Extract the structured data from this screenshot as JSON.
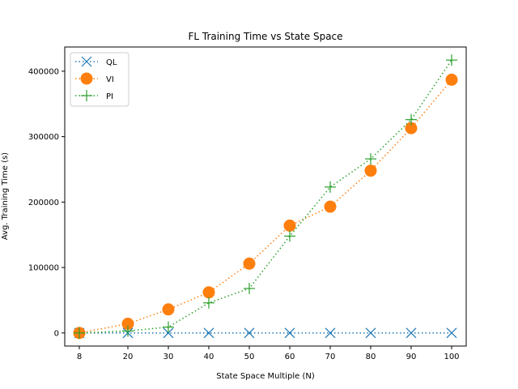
{
  "chart_data": {
    "type": "line",
    "title": "FL Training Time vs State Space",
    "xlabel": "State Space Multiple (N)",
    "ylabel": "Avg. Training Time (s)",
    "x": [
      8,
      20,
      30,
      40,
      50,
      60,
      70,
      80,
      90,
      100
    ],
    "x_ticks": [
      "8",
      "20",
      "30",
      "40",
      "50",
      "60",
      "70",
      "80",
      "90",
      "100"
    ],
    "y_ticks": [
      "0",
      "100000",
      "200000",
      "300000",
      "400000"
    ],
    "xlim": [
      4.4,
      103.6
    ],
    "ylim": [
      -20000,
      437000
    ],
    "legend_position": "top-left",
    "grid": false,
    "series": [
      {
        "name": "QL",
        "color": "#1f77b4",
        "marker": "x",
        "values": [
          0,
          0,
          0,
          0,
          0,
          0,
          0,
          0,
          0,
          0
        ]
      },
      {
        "name": "VI",
        "color": "#ff7f0e",
        "marker": "circle",
        "values": [
          0,
          14000,
          36000,
          62000,
          106000,
          164000,
          193000,
          248000,
          313000,
          387000
        ]
      },
      {
        "name": "PI",
        "color": "#2ca02c",
        "marker": "plus",
        "values": [
          0,
          3000,
          9000,
          46000,
          68000,
          148000,
          223000,
          266000,
          326000,
          417000
        ]
      }
    ]
  }
}
